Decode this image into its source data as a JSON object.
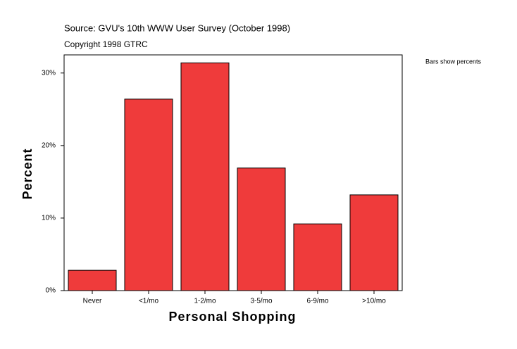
{
  "chart_data": {
    "type": "bar",
    "title": "Source: GVU's 10th WWW User Survey (October 1998)",
    "subtitle": "Copyright 1998 GTRC",
    "annotation": "Bars show percents",
    "x_label": "Personal Shopping",
    "y_label": "Percent",
    "categories": [
      "Never",
      "<1/mo",
      "1-2/mo",
      "3-5/mo",
      "6-9/mo",
      ">10/mo"
    ],
    "values": [
      2.8,
      26.4,
      31.4,
      16.9,
      9.2,
      13.2
    ],
    "color": "#ef3b3b",
    "ylim": [
      0,
      32.5
    ],
    "yticks": [
      {
        "value": 0,
        "label": "0%"
      },
      {
        "value": 10,
        "label": "10%"
      },
      {
        "value": 20,
        "label": "20%"
      },
      {
        "value": 30,
        "label": "30%"
      }
    ],
    "grid": false
  }
}
